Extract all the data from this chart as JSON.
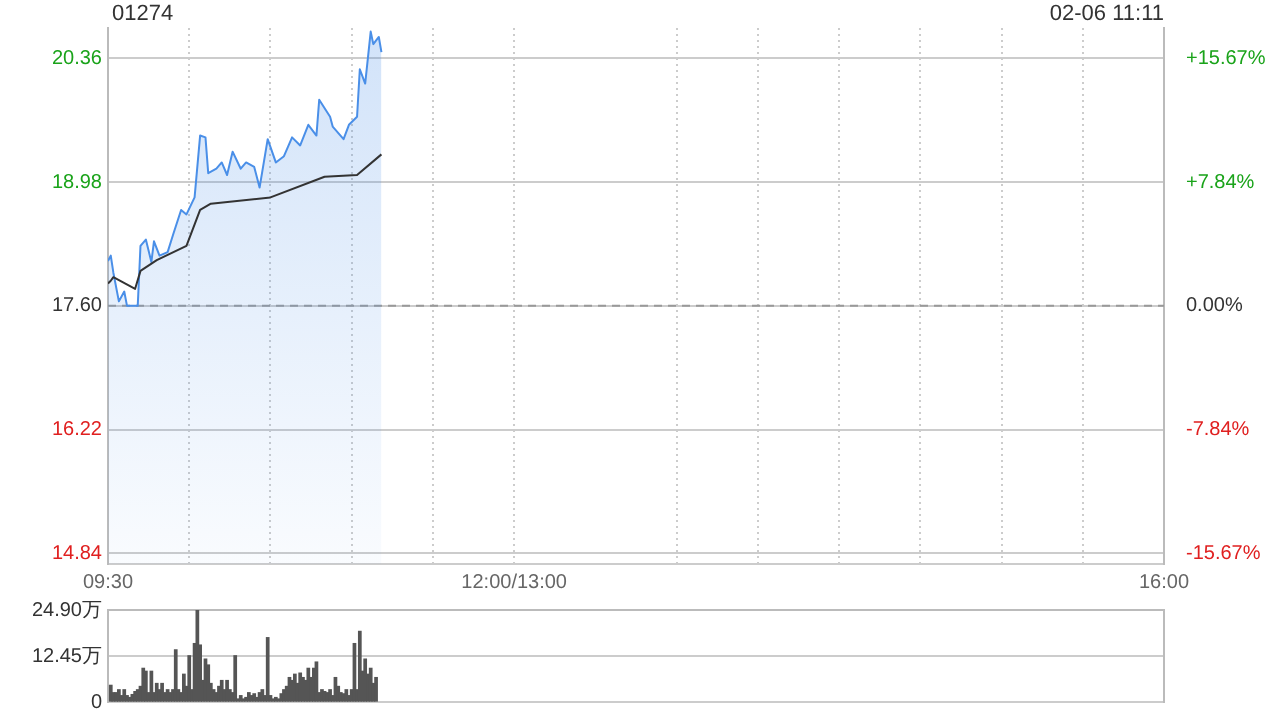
{
  "chart_data": [
    {
      "type": "line",
      "title": "01274",
      "annotations": [
        "02-06 11:11"
      ],
      "xlim": [
        9.5,
        16
      ],
      "xticks": [
        {
          "value": 9.5,
          "label": "09:30"
        },
        {
          "value": 10,
          "label": null
        },
        {
          "value": 10.5,
          "label": null
        },
        {
          "value": 11,
          "label": null
        },
        {
          "value": 11.5,
          "label": null
        },
        {
          "value": 12,
          "label": "12:00/13:00"
        },
        {
          "value": 13,
          "label": null
        },
        {
          "value": 13.5,
          "label": null
        },
        {
          "value": 14,
          "label": null
        },
        {
          "value": 14.5,
          "label": null
        },
        {
          "value": 15,
          "label": null
        },
        {
          "value": 15.5,
          "label": null
        },
        {
          "value": 16,
          "label": "16:00"
        }
      ],
      "ylim": [
        14.72,
        20.7
      ],
      "yticks": [
        {
          "value": 14.84,
          "label": "14.84"
        },
        {
          "value": 16.22,
          "label": "16.22"
        },
        {
          "value": 17.6,
          "label": "17.60"
        },
        {
          "value": 18.98,
          "label": "18.98"
        },
        {
          "value": 20.36,
          "label": "20.36"
        }
      ],
      "y2lim": [
        -16.36,
        17.61
      ],
      "y2ticks": [
        {
          "value": -15.67,
          "label": "-15.67%"
        },
        {
          "value": -7.84,
          "label": "-7.84%"
        },
        {
          "value": 0,
          "label": "0.00%"
        },
        {
          "value": 7.84,
          "label": "+7.84%"
        },
        {
          "value": 15.67,
          "label": "+15.67%"
        }
      ],
      "grid": true,
      "legend": false,
      "marker": "none",
      "ref_lines": [
        {
          "axis": "y",
          "value": 17.6,
          "color": "#999999",
          "line_style": "dashed"
        }
      ],
      "series": [
        {
          "type": "area",
          "color": "#4a8fe8",
          "x": [
            9.5,
            9.517,
            9.533,
            9.567,
            9.6,
            9.617,
            9.683,
            9.7,
            9.733,
            9.767,
            9.783,
            9.817,
            9.867,
            9.9,
            9.95,
            9.983,
            10.033,
            10.067,
            10.1,
            10.117,
            10.167,
            10.2,
            10.233,
            10.267,
            10.317,
            10.35,
            10.4,
            10.433,
            10.483,
            10.533,
            10.583,
            10.633,
            10.683,
            10.733,
            10.783,
            10.8,
            10.867,
            10.883,
            10.95,
            10.983,
            11.033,
            11.05,
            11.083,
            11.117,
            11.133,
            11.167,
            11.183
          ],
          "values": [
            18.1,
            18.16,
            17.97,
            17.65,
            17.76,
            17.6,
            17.6,
            18.27,
            18.34,
            18.09,
            18.32,
            18.16,
            18.2,
            18.39,
            18.67,
            18.62,
            18.81,
            19.5,
            19.48,
            19.08,
            19.13,
            19.2,
            19.06,
            19.32,
            19.13,
            19.2,
            19.15,
            18.92,
            19.46,
            19.2,
            19.27,
            19.48,
            19.39,
            19.62,
            19.5,
            19.9,
            19.71,
            19.6,
            19.46,
            19.62,
            19.71,
            20.24,
            20.08,
            20.66,
            20.52,
            20.6,
            20.43
          ]
        },
        {
          "type": "line",
          "color": "#333333",
          "axis": "y",
          "x": [
            9.5,
            9.517,
            9.533,
            9.667,
            9.7,
            9.8,
            9.983,
            10.067,
            10.133,
            10.5,
            10.833,
            11.033,
            11.183
          ],
          "values": [
            17.85,
            17.88,
            17.92,
            17.79,
            17.99,
            18.11,
            18.27,
            18.67,
            18.74,
            18.81,
            19.04,
            19.06,
            19.29
          ]
        }
      ]
    },
    {
      "type": "bar",
      "xlim": [
        9.5,
        16
      ],
      "ylim": [
        0,
        24.9
      ],
      "yticks": [
        {
          "value": 0,
          "label": "0"
        },
        {
          "value": 12.45,
          "label": "12.45万"
        },
        {
          "value": 24.9,
          "label": "24.90万"
        }
      ],
      "grid": "y",
      "tick_labels": "y",
      "legend": false,
      "series": [
        {
          "color": "#555555",
          "x": [
            9.517,
            9.533,
            9.55,
            9.567,
            9.583,
            9.6,
            9.617,
            9.633,
            9.65,
            9.667,
            9.683,
            9.7,
            9.717,
            9.733,
            9.75,
            9.767,
            9.783,
            9.8,
            9.817,
            9.833,
            9.85,
            9.867,
            9.883,
            9.9,
            9.917,
            9.933,
            9.95,
            9.967,
            9.983,
            10.0,
            10.017,
            10.033,
            10.05,
            10.067,
            10.083,
            10.1,
            10.117,
            10.133,
            10.15,
            10.167,
            10.183,
            10.2,
            10.217,
            10.233,
            10.25,
            10.267,
            10.283,
            10.3,
            10.317,
            10.333,
            10.35,
            10.367,
            10.383,
            10.4,
            10.417,
            10.433,
            10.45,
            10.467,
            10.483,
            10.5,
            10.517,
            10.533,
            10.55,
            10.567,
            10.583,
            10.6,
            10.617,
            10.633,
            10.65,
            10.667,
            10.683,
            10.7,
            10.717,
            10.733,
            10.75,
            10.767,
            10.783,
            10.8,
            10.817,
            10.833,
            10.85,
            10.867,
            10.883,
            10.9,
            10.917,
            10.933,
            10.95,
            10.967,
            10.983,
            11.0,
            11.017,
            11.033,
            11.05,
            11.067,
            11.083,
            11.1,
            11.117,
            11.133,
            11.15
          ],
          "values": [
            4.5,
            2.5,
            2.5,
            3.3,
            1.7,
            3.3,
            1.7,
            1.2,
            2.0,
            2.8,
            3.3,
            4.2,
            9.1,
            8.3,
            2.5,
            8.3,
            2.5,
            5.0,
            3.3,
            5.0,
            2.5,
            3.3,
            2.5,
            3.3,
            14.1,
            3.3,
            2.5,
            7.5,
            4.2,
            12.5,
            3.3,
            15.8,
            24.9,
            15.4,
            5.8,
            11.6,
            10.0,
            5.0,
            3.3,
            2.5,
            4.2,
            5.8,
            3.3,
            5.8,
            3.3,
            2.5,
            12.5,
            0.8,
            1.7,
            0.8,
            1.2,
            2.5,
            1.7,
            2.2,
            1.2,
            2.5,
            3.3,
            1.7,
            17.4,
            1.7,
            0.8,
            1.2,
            0.8,
            2.2,
            3.3,
            4.2,
            6.6,
            5.8,
            7.5,
            5.0,
            7.8,
            6.6,
            5.8,
            9.1,
            6.6,
            9.1,
            10.8,
            2.5,
            3.3,
            2.8,
            2.5,
            3.3,
            1.7,
            6.6,
            4.2,
            2.5,
            2.2,
            3.3,
            1.7,
            3.3,
            15.8,
            3.3,
            19.1,
            8.3,
            11.6,
            7.5,
            9.1,
            5.0,
            6.6
          ]
        }
      ]
    }
  ]
}
